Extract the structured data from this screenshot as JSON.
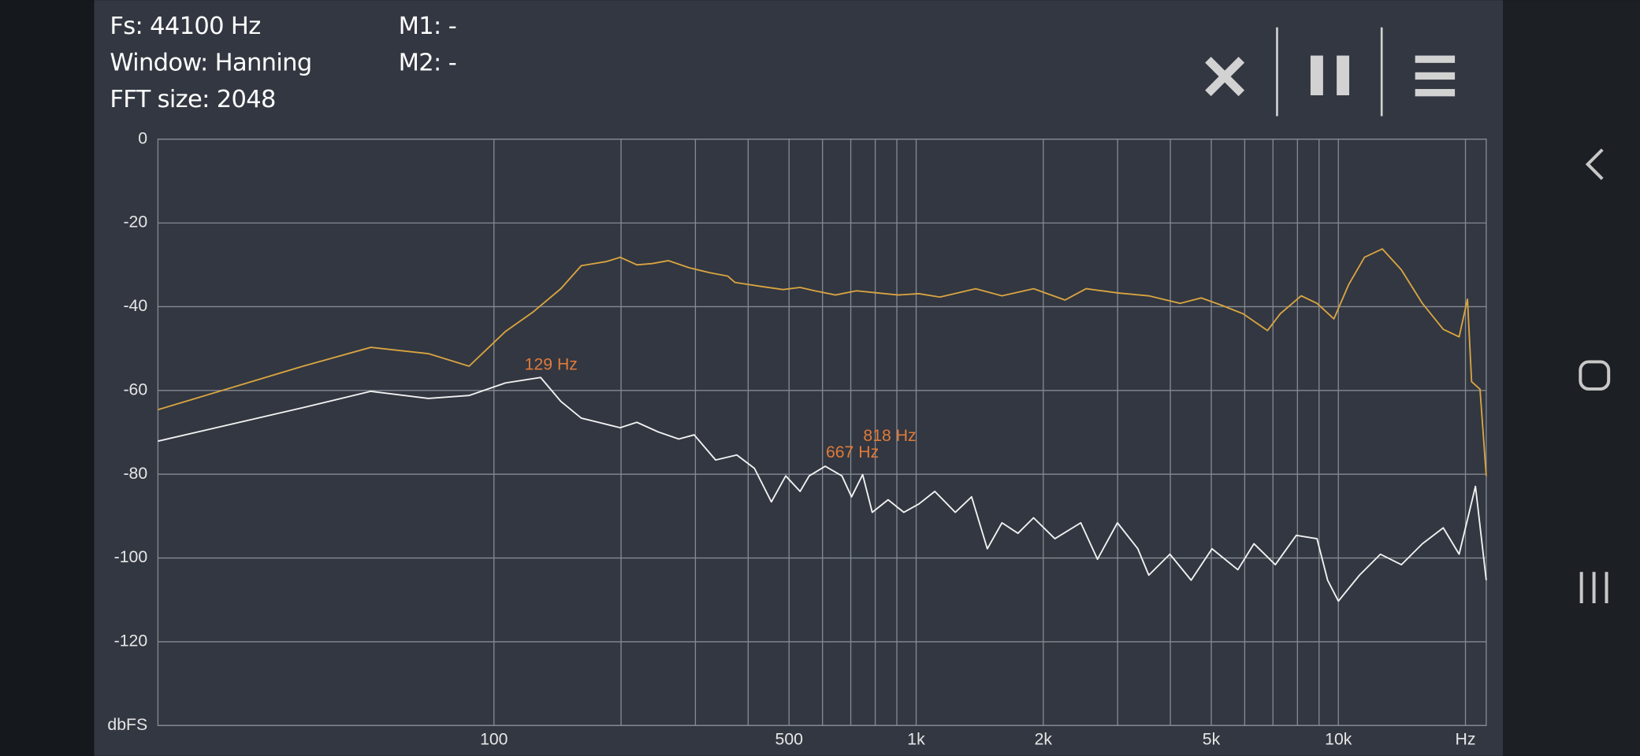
{
  "header": {
    "fs": "Fs: 44100 Hz",
    "window": "Window: Hanning",
    "fft": "FFT size: 2048",
    "m1": "M1: -",
    "m2": "M2: -"
  },
  "chart_data": {
    "type": "line",
    "log_x": true,
    "grid": true,
    "xlim": [
      16,
      22400
    ],
    "ylim": [
      -140,
      0
    ],
    "xticks": [
      100,
      500,
      {
        "value": 1000,
        "label": "1k"
      },
      {
        "value": 2000,
        "label": "2k"
      },
      {
        "value": 5000,
        "label": "5k"
      },
      {
        "value": 10000,
        "label": "10k"
      },
      {
        "value": 20000,
        "label": "Hz"
      }
    ],
    "xgrid": [
      200,
      300,
      400,
      600,
      700,
      800,
      900,
      3000,
      4000,
      6000,
      7000,
      8000,
      9000
    ],
    "yticks": [
      0,
      -20,
      -40,
      -60,
      -80,
      -100,
      -120,
      {
        "value": -140,
        "label": "dbFS"
      }
    ],
    "annotation_color": "#e07a3a",
    "annotations": [
      {
        "text": "129 Hz",
        "x": 129,
        "y": -54
      },
      {
        "text": "667 Hz",
        "x": 667,
        "y": -75
      },
      {
        "text": "818 Hz",
        "x": 818,
        "y": -71
      }
    ],
    "series": [
      {
        "color": "#d9a441",
        "x": [
          16,
          35.3,
          51.1,
          69.9,
          87.3,
          106.5,
          124,
          144,
          161,
          185,
          199,
          218,
          237,
          259,
          290,
          325,
          358,
          372,
          432,
          484,
          531,
          575,
          644,
          722,
          809,
          906,
          1015,
          1138,
          1383,
          1597,
          1897,
          2253,
          2527,
          2997,
          3556,
          4219,
          4732,
          5306,
          5950,
          6793,
          7280,
          8165,
          8900,
          9760,
          10580,
          11530,
          12710,
          14100,
          15810,
          17720,
          19320,
          20220,
          20680,
          21650,
          22400
        ],
        "values": [
          -64.6,
          -54.2,
          -49.7,
          -51.2,
          -54.2,
          -45.9,
          -41.2,
          -35.7,
          -30.2,
          -29.2,
          -28.2,
          -30,
          -29.7,
          -29,
          -30.7,
          -31.9,
          -32.7,
          -34.2,
          -35.2,
          -35.9,
          -35.4,
          -36.2,
          -37.2,
          -36.2,
          -36.7,
          -37.2,
          -36.9,
          -37.7,
          -35.7,
          -37.4,
          -35.7,
          -38.4,
          -35.7,
          -36.7,
          -37.4,
          -39.2,
          -37.9,
          -39.7,
          -41.7,
          -45.7,
          -41.7,
          -37.4,
          -39.2,
          -42.9,
          -34.7,
          -28.2,
          -26.2,
          -31.2,
          -39.2,
          -45.4,
          -47.2,
          -38.2,
          -57.9,
          -59.7,
          -80.4
        ]
      },
      {
        "color": "#f2f2f2",
        "x": [
          16,
          35.3,
          51.1,
          69.9,
          87.3,
          106.5,
          129,
          144,
          161,
          185,
          199,
          218,
          245,
          274,
          298,
          335,
          376,
          414,
          454,
          491,
          531,
          558,
          609,
          667,
          703,
          747,
          787,
          858,
          935,
          1015,
          1107,
          1238,
          1353,
          1474,
          1597,
          1742,
          1897,
          2131,
          2454,
          2688,
          2997,
          3350,
          3556,
          3990,
          4480,
          5020,
          5780,
          6310,
          7090,
          7950,
          8900,
          9430,
          10000,
          11220,
          12580,
          14100,
          15810,
          17720,
          19320,
          21120,
          22400
        ],
        "values": [
          -72.1,
          -64.1,
          -60.2,
          -61.9,
          -61.2,
          -58.2,
          -56.9,
          -62.6,
          -66.6,
          -68.1,
          -68.9,
          -67.6,
          -69.9,
          -71.6,
          -70.6,
          -76.6,
          -75.4,
          -78.6,
          -86.6,
          -80.4,
          -84.1,
          -80.4,
          -78.1,
          -80.4,
          -85.4,
          -80.1,
          -89.1,
          -86.1,
          -89.1,
          -87.1,
          -84.1,
          -89.1,
          -85.4,
          -97.8,
          -91.6,
          -94.1,
          -90.4,
          -95.4,
          -91.6,
          -100.3,
          -91.6,
          -97.8,
          -104.1,
          -99.1,
          -105.3,
          -97.8,
          -102.8,
          -96.6,
          -101.6,
          -94.6,
          -95.4,
          -105.3,
          -110.3,
          -104.1,
          -99.1,
          -101.6,
          -96.6,
          -92.8,
          -99.1,
          -82.9,
          -105.3
        ]
      }
    ]
  }
}
